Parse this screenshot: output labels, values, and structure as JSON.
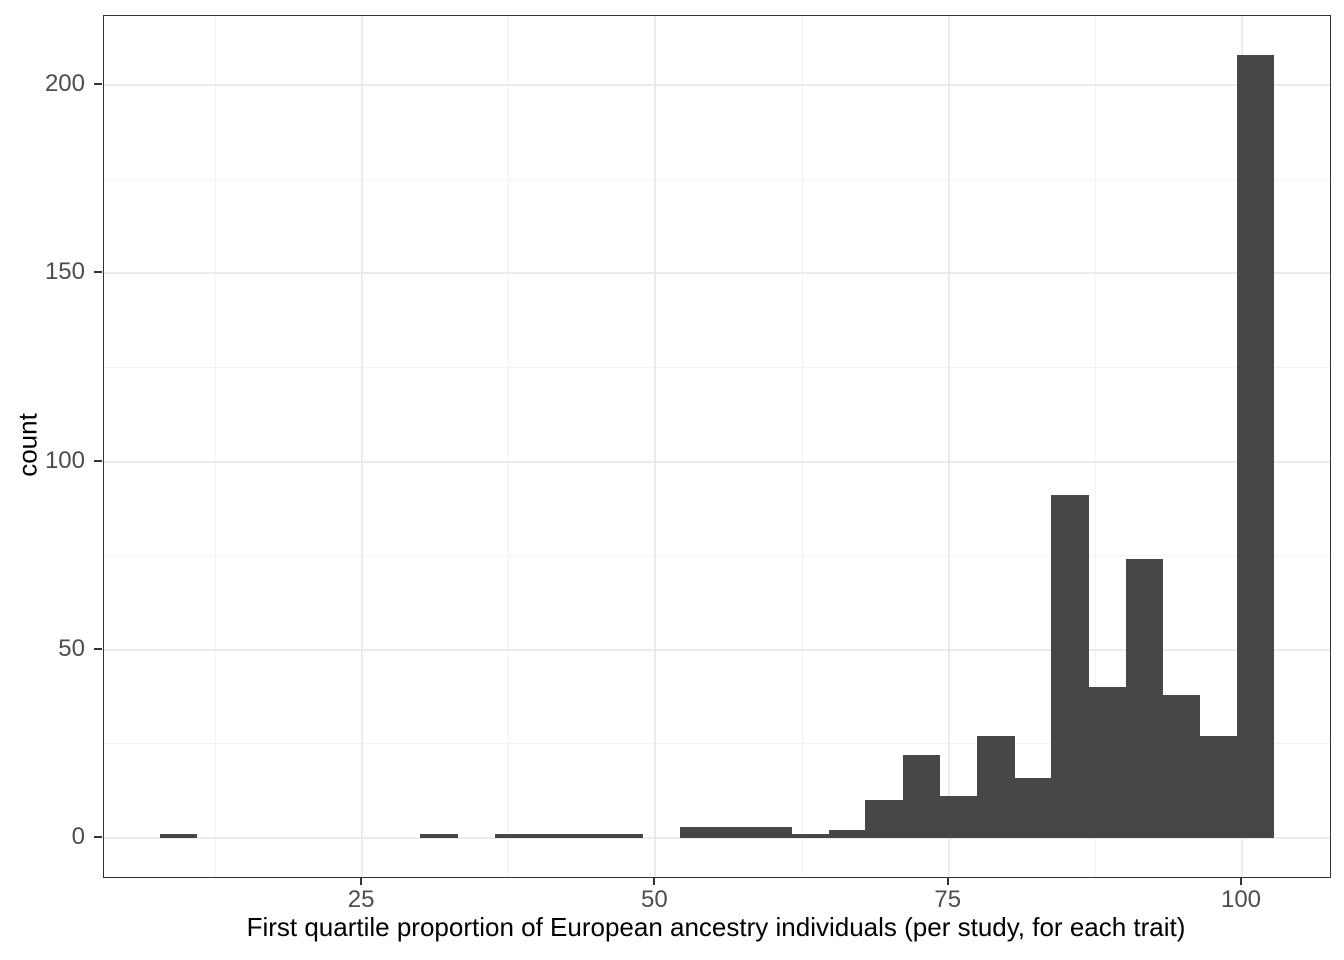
{
  "chart_data": {
    "type": "bar",
    "subtype": "histogram",
    "title": "",
    "xlabel": "First quartile proportion of European ancestry individuals (per study, for each trait)",
    "ylabel": "count",
    "x_tick_labels": [
      "25",
      "50",
      "75",
      "100"
    ],
    "x_tick_values": [
      25,
      50,
      75,
      100
    ],
    "y_tick_labels": [
      "0",
      "50",
      "100",
      "150",
      "200"
    ],
    "y_tick_values": [
      0,
      50,
      100,
      150,
      200
    ],
    "x_minor_gridlines": [
      12.5,
      37.5,
      62.5,
      87.5
    ],
    "y_minor_gridlines": [
      25,
      75,
      125,
      175
    ],
    "xlim": [
      3.0,
      107.5
    ],
    "ylim": [
      -10.4,
      218.4
    ],
    "grid": true,
    "legend": false,
    "bar_color": "#474747",
    "panel_border_color": "#333333",
    "grid_color": "#ebebeb",
    "tick_label_color": "#4d4d4d",
    "bins": [
      {
        "x0": 7.8,
        "x1": 10.9,
        "count": 1
      },
      {
        "x0": 29.9,
        "x1": 33.1,
        "count": 1
      },
      {
        "x0": 36.3,
        "x1": 39.4,
        "count": 1
      },
      {
        "x0": 39.4,
        "x1": 42.6,
        "count": 1
      },
      {
        "x0": 42.6,
        "x1": 45.8,
        "count": 1
      },
      {
        "x0": 45.8,
        "x1": 48.9,
        "count": 1
      },
      {
        "x0": 52.1,
        "x1": 55.3,
        "count": 3
      },
      {
        "x0": 55.3,
        "x1": 58.4,
        "count": 3
      },
      {
        "x0": 58.4,
        "x1": 61.6,
        "count": 3
      },
      {
        "x0": 61.6,
        "x1": 64.8,
        "count": 1
      },
      {
        "x0": 64.8,
        "x1": 67.9,
        "count": 2
      },
      {
        "x0": 67.9,
        "x1": 71.1,
        "count": 10
      },
      {
        "x0": 71.1,
        "x1": 74.2,
        "count": 22
      },
      {
        "x0": 74.2,
        "x1": 77.4,
        "count": 11
      },
      {
        "x0": 77.4,
        "x1": 80.6,
        "count": 27
      },
      {
        "x0": 80.6,
        "x1": 83.7,
        "count": 16
      },
      {
        "x0": 83.7,
        "x1": 86.9,
        "count": 91
      },
      {
        "x0": 86.9,
        "x1": 90.1,
        "count": 40
      },
      {
        "x0": 90.1,
        "x1": 93.2,
        "count": 74
      },
      {
        "x0": 93.2,
        "x1": 96.4,
        "count": 38
      },
      {
        "x0": 96.4,
        "x1": 99.6,
        "count": 27
      },
      {
        "x0": 99.6,
        "x1": 102.7,
        "count": 208
      }
    ]
  }
}
